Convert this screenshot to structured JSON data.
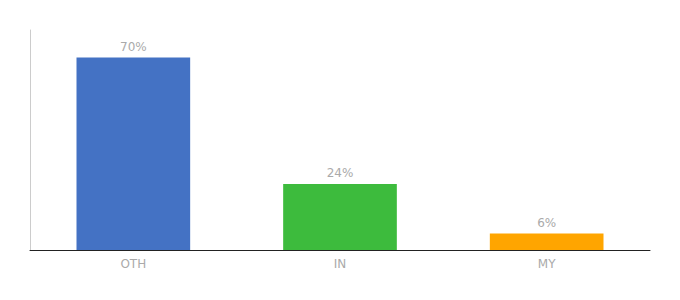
{
  "chart_data": {
    "type": "bar",
    "categories": [
      "OTH",
      "IN",
      "MY"
    ],
    "values": [
      70,
      24,
      6
    ],
    "value_labels": [
      "70%",
      "24%",
      "6%"
    ],
    "colors": [
      "#4472C4",
      "#3DBB3D",
      "#FFA500"
    ],
    "ylim": [
      0,
      80
    ],
    "data_labels": true,
    "tick_labels": "x",
    "grid": false
  }
}
